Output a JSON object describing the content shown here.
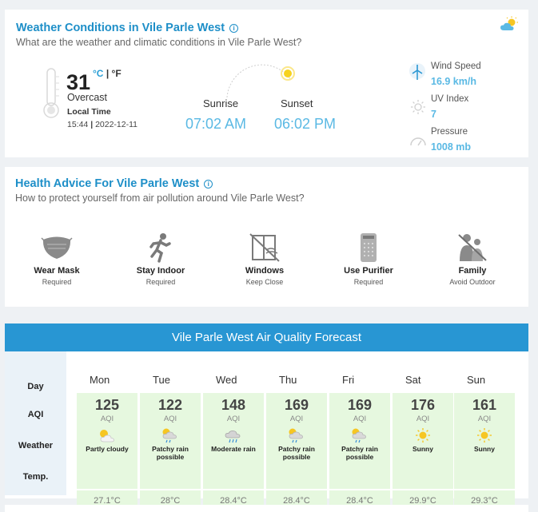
{
  "weather": {
    "title": "Weather Conditions in Vile Parle West",
    "subtitle": "What are the weather and climatic conditions in Vile Parle West?",
    "temperature": "31",
    "unit_c": "°C",
    "unit_sep": "|",
    "unit_f": "°F",
    "condition": "Overcast",
    "local_time_label": "Local Time",
    "local_time": "15:44",
    "time_sep": "|",
    "local_date": "2022-12-11",
    "sunrise_label": "Sunrise",
    "sunrise_time": "07:02 AM",
    "sunset_label": "Sunset",
    "sunset_time": "06:02 PM",
    "stats": [
      {
        "label": "Wind Speed",
        "value": "16.9 km/h",
        "icon": "wind-turbine-icon"
      },
      {
        "label": "UV Index",
        "value": "7",
        "icon": "sun-outline-icon"
      },
      {
        "label": "Pressure",
        "value": "1008 mb",
        "icon": "gauge-icon"
      }
    ]
  },
  "health": {
    "title": "Health Advice For Vile Parle West",
    "subtitle": "How to protect yourself from air pollution around Vile Parle West?",
    "items": [
      {
        "title": "Wear Mask",
        "status": "Required",
        "icon": "mask-icon"
      },
      {
        "title": "Stay Indoor",
        "status": "Required",
        "icon": "running-person-icon"
      },
      {
        "title": "Windows",
        "status": "Keep Close",
        "icon": "window-icon"
      },
      {
        "title": "Use Purifier",
        "status": "Required",
        "icon": "purifier-icon"
      },
      {
        "title": "Family",
        "status": "Avoid Outdoor",
        "icon": "family-icon"
      }
    ]
  },
  "forecast": {
    "title": "Vile Parle West Air Quality Forecast",
    "row_labels": {
      "day": "Day",
      "aqi": "AQI",
      "weather": "Weather",
      "temp": "Temp."
    },
    "aqi_unit": "AQI",
    "days": [
      {
        "day": "Mon",
        "aqi": "125",
        "condition": "Partly cloudy",
        "icon": "partly-cloudy-icon",
        "temp": "27.1°C"
      },
      {
        "day": "Tue",
        "aqi": "122",
        "condition": "Patchy rain possible",
        "icon": "patchy-rain-icon",
        "temp": "28°C"
      },
      {
        "day": "Wed",
        "aqi": "148",
        "condition": "Moderate rain",
        "icon": "moderate-rain-icon",
        "temp": "28.4°C"
      },
      {
        "day": "Thu",
        "aqi": "169",
        "condition": "Patchy rain possible",
        "icon": "patchy-rain-icon",
        "temp": "28.4°C"
      },
      {
        "day": "Fri",
        "aqi": "169",
        "condition": "Patchy rain possible",
        "icon": "patchy-rain-icon",
        "temp": "28.4°C"
      },
      {
        "day": "Sat",
        "aqi": "176",
        "condition": "Sunny",
        "icon": "sunny-icon",
        "temp": "29.9°C"
      },
      {
        "day": "Sun",
        "aqi": "161",
        "condition": "Sunny",
        "icon": "sunny-icon",
        "temp": "29.3°C"
      }
    ]
  },
  "colors": {
    "accent": "#1e8fc8",
    "header_bg": "#2896d3",
    "aqi_box": "#e6f8df",
    "value": "#5ab9e4"
  }
}
